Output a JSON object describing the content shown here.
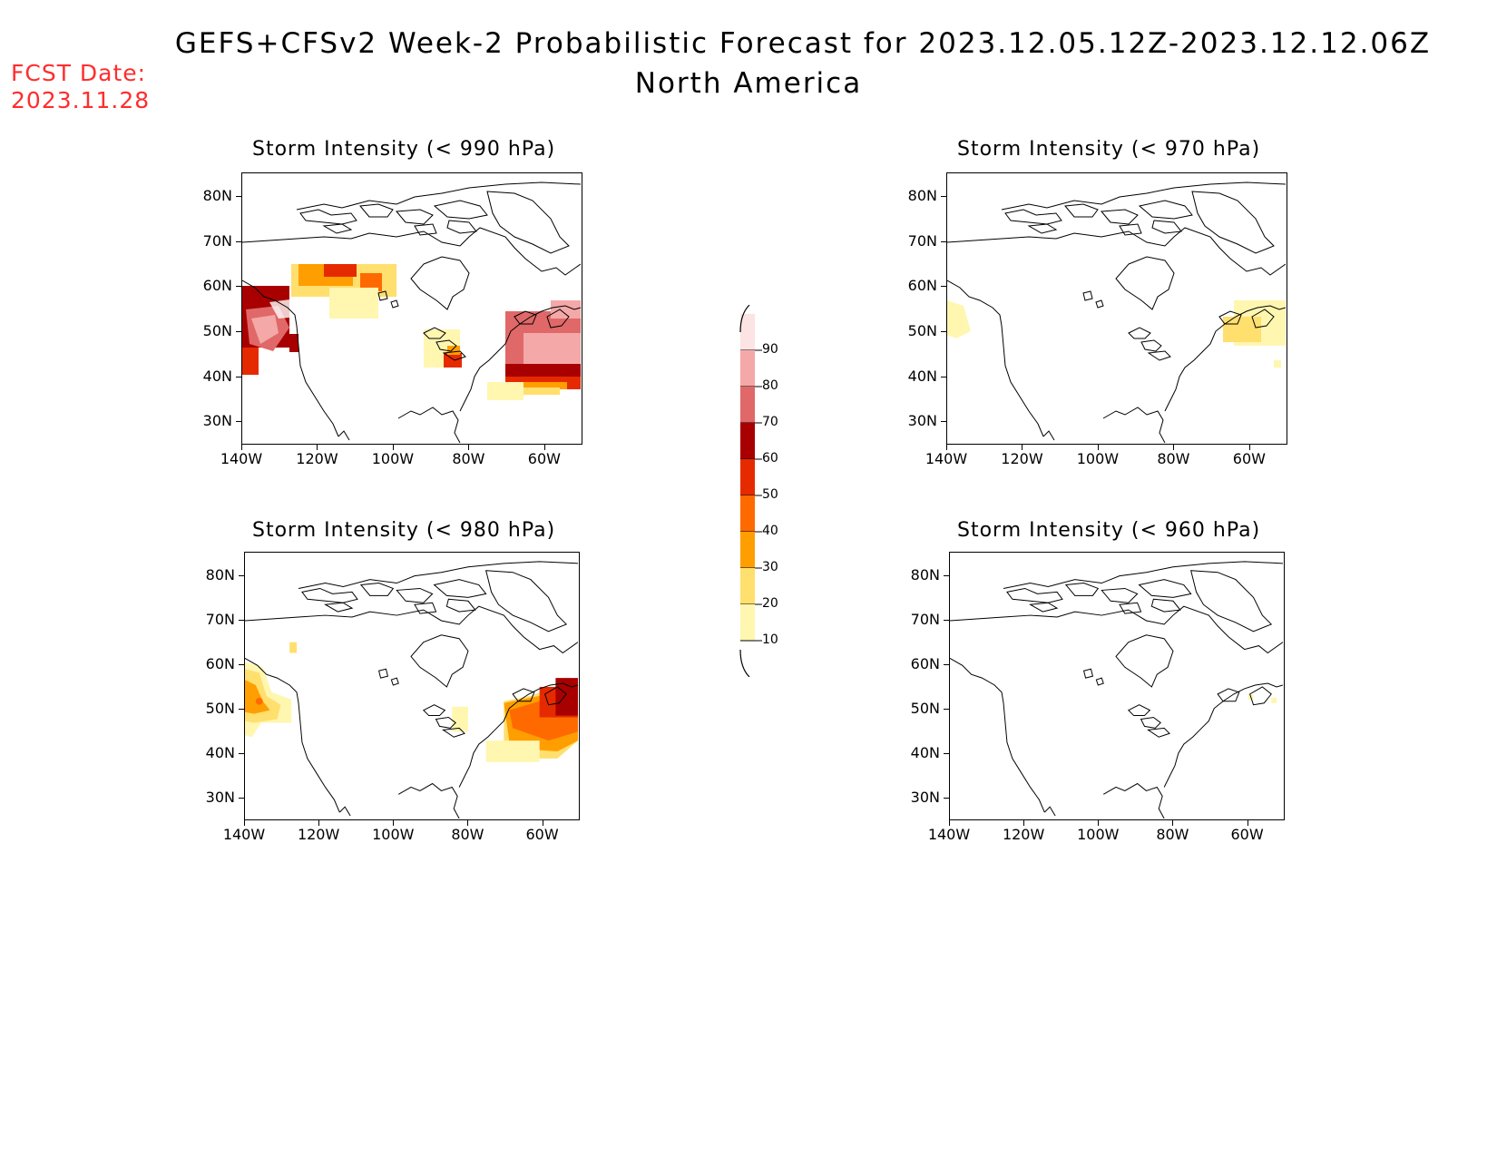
{
  "title": {
    "line1": "GEFS+CFSv2 Week-2 Probabilistic Forecast for 2023.12.05.12Z-2023.12.12.06Z",
    "line2": "North America"
  },
  "forecast_date": {
    "label": "FCST Date:",
    "value": "2023.11.28"
  },
  "panels": [
    {
      "id": "p990",
      "title": "Storm Intensity (< 990 hPa)"
    },
    {
      "id": "p970",
      "title": "Storm Intensity (< 970 hPa)"
    },
    {
      "id": "p980",
      "title": "Storm Intensity (< 980 hPa)"
    },
    {
      "id": "p960",
      "title": "Storm Intensity (< 960 hPa)"
    }
  ],
  "axes": {
    "lat_labels": [
      "80N",
      "70N",
      "60N",
      "50N",
      "40N",
      "30N"
    ],
    "lon_labels": [
      "140W",
      "120W",
      "100W",
      "80W",
      "60W"
    ]
  },
  "colorbar": {
    "labels": [
      "90",
      "80",
      "70",
      "60",
      "50",
      "40",
      "30",
      "20",
      "10"
    ],
    "colors": [
      "#fce4e4",
      "#f4a8a8",
      "#e06868",
      "#a80000",
      "#e62a00",
      "#ff6a00",
      "#ff9e00",
      "#ffdf6e",
      "#fff6b0"
    ]
  },
  "probability_colors": {
    "p10": "#fff6b0",
    "p20": "#ffdf6e",
    "p30": "#ff9e00",
    "p40": "#ff6a00",
    "p50": "#e62a00",
    "p60": "#a80000",
    "p70": "#e06868",
    "p80": "#f4a8a8",
    "p90": "#fce4e4"
  }
}
